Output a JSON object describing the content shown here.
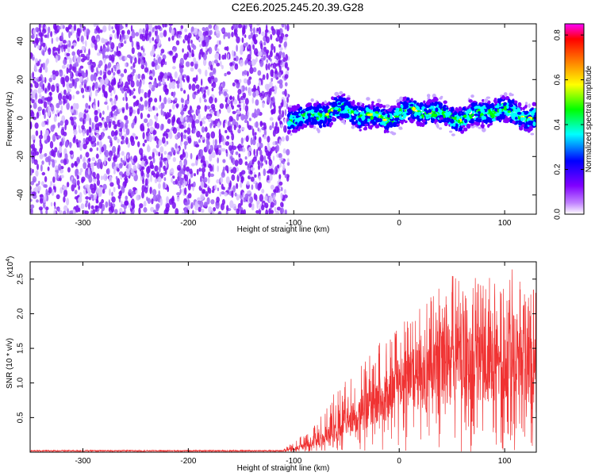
{
  "figure": {
    "title": "C2E6.2025.245.20.39.G28"
  },
  "chart_data": [
    {
      "type": "heatmap",
      "title": "",
      "xlabel": "Height of straight line (km)",
      "ylabel": "Frequency (Hz)",
      "xlim": [
        -350,
        130
      ],
      "ylim": [
        -50,
        49
      ],
      "xticks": [
        -300,
        -200,
        -100,
        0,
        100
      ],
      "xtick_labels": [
        "-300",
        "-200",
        "-100",
        "0",
        "100"
      ],
      "yticks": [
        40,
        20,
        0,
        -20,
        -40
      ],
      "ytick_labels": [
        "40",
        "20",
        "0",
        "-20",
        "-40"
      ],
      "description_regions": [
        {
          "x_range": [
            -350,
            -105
          ],
          "freq_range": [
            -50,
            49
          ],
          "amplitude_range": [
            0.0,
            0.12
          ],
          "note": "broadband noise"
        },
        {
          "x_range": [
            -105,
            130
          ],
          "freq_center": 2,
          "freq_halfwidth": 10,
          "amplitude_peak": 0.4,
          "note": "narrowband signal"
        }
      ],
      "colorbar": {
        "label": "Normalized spectral amplitude",
        "range": [
          0.0,
          0.85
        ],
        "ticks": [
          0.0,
          0.2,
          0.4,
          0.6,
          0.8
        ],
        "tick_labels": [
          "0.0",
          "0.2",
          "0.4",
          "0.6",
          "0.8"
        ],
        "colors": [
          "#ffffff",
          "#8000ff",
          "#0000ff",
          "#00ffff",
          "#00ff00",
          "#ffff00",
          "#ff8000",
          "#ff0000",
          "#ff00ff"
        ]
      }
    },
    {
      "type": "line",
      "title": "",
      "xlabel": "Height of straight line (km)",
      "ylabel": "SNR (10 * v/v)",
      "y_scale_label": "(x10",
      "y_scale_exponent": "4",
      "y_scale_close": ")",
      "xlim": [
        -350,
        130
      ],
      "ylim": [
        0,
        2.75
      ],
      "xticks": [
        -300,
        -200,
        -100,
        0,
        100
      ],
      "xtick_labels": [
        "-300",
        "-200",
        "-100",
        "0",
        "100"
      ],
      "yticks": [
        0.5,
        1.0,
        1.5,
        2.0,
        2.5
      ],
      "ytick_labels": [
        "0.5",
        "1.0",
        "1.5",
        "2.0",
        "2.5"
      ],
      "series": [
        {
          "name": "SNR",
          "color": "#f03232",
          "envelope": {
            "x": [
              -350,
              -110,
              -100,
              -80,
              -60,
              -40,
              -20,
              0,
              20,
              40,
              60,
              80,
              100,
              120,
              130
            ],
            "y_mean": [
              0.02,
              0.02,
              0.05,
              0.15,
              0.3,
              0.5,
              0.75,
              0.9,
              1.1,
              1.25,
              1.3,
              1.25,
              1.3,
              1.25,
              1.2
            ],
            "y_max": [
              0.05,
              0.05,
              0.15,
              0.4,
              0.9,
              1.2,
              1.6,
              1.9,
              2.1,
              2.5,
              2.6,
              2.5,
              2.7,
              2.6,
              2.3
            ]
          }
        }
      ]
    }
  ]
}
